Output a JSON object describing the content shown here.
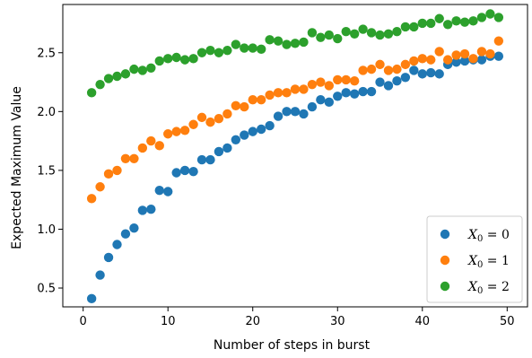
{
  "chart_data": {
    "type": "scatter",
    "title": "",
    "xlabel": "Number of steps in burst",
    "ylabel": "Expected Maximum Value",
    "xlim": [
      -2.4,
      52.4
    ],
    "ylim": [
      0.34,
      2.91
    ],
    "xticks": [
      0,
      10,
      20,
      30,
      40,
      50
    ],
    "yticks": [
      0.5,
      1.0,
      1.5,
      2.0,
      2.5
    ],
    "xtick_labels": [
      "0",
      "10",
      "20",
      "30",
      "40",
      "50"
    ],
    "ytick_labels": [
      "0.5",
      "1.0",
      "1.5",
      "2.0",
      "2.5"
    ],
    "grid": false,
    "legend_position": "lower-right",
    "x": [
      1,
      2,
      3,
      4,
      5,
      6,
      7,
      8,
      9,
      10,
      11,
      12,
      13,
      14,
      15,
      16,
      17,
      18,
      19,
      20,
      21,
      22,
      23,
      24,
      25,
      26,
      27,
      28,
      29,
      30,
      31,
      32,
      33,
      34,
      35,
      36,
      37,
      38,
      39,
      40,
      41,
      42,
      43,
      44,
      45,
      46,
      47,
      48,
      49
    ],
    "series": [
      {
        "name": "X0 = 0",
        "legend_main": "X",
        "legend_sub": "0",
        "legend_rest": " = 0",
        "color": "#1f77b4",
        "values": [
          0.41,
          0.61,
          0.76,
          0.87,
          0.96,
          1.01,
          1.16,
          1.17,
          1.33,
          1.32,
          1.48,
          1.5,
          1.49,
          1.59,
          1.59,
          1.66,
          1.69,
          1.76,
          1.8,
          1.83,
          1.85,
          1.88,
          1.96,
          2.0,
          2.0,
          1.98,
          2.04,
          2.1,
          2.08,
          2.13,
          2.16,
          2.15,
          2.17,
          2.17,
          2.25,
          2.22,
          2.26,
          2.29,
          2.35,
          2.32,
          2.33,
          2.32,
          2.4,
          2.42,
          2.43,
          2.44,
          2.44,
          2.47,
          2.47
        ]
      },
      {
        "name": "X0 = 1",
        "legend_main": "X",
        "legend_sub": "0",
        "legend_rest": " = 1",
        "color": "#ff7f0e",
        "values": [
          1.26,
          1.36,
          1.47,
          1.5,
          1.6,
          1.6,
          1.69,
          1.75,
          1.71,
          1.81,
          1.83,
          1.84,
          1.89,
          1.95,
          1.91,
          1.94,
          1.98,
          2.05,
          2.04,
          2.1,
          2.1,
          2.14,
          2.16,
          2.16,
          2.19,
          2.19,
          2.23,
          2.25,
          2.22,
          2.27,
          2.27,
          2.26,
          2.35,
          2.36,
          2.4,
          2.35,
          2.36,
          2.4,
          2.43,
          2.45,
          2.44,
          2.51,
          2.44,
          2.48,
          2.49,
          2.45,
          2.51,
          2.49,
          2.6
        ]
      },
      {
        "name": "X0 = 2",
        "legend_main": "X",
        "legend_sub": "0",
        "legend_rest": " = 2",
        "color": "#2ca02c",
        "values": [
          2.16,
          2.23,
          2.28,
          2.3,
          2.32,
          2.36,
          2.35,
          2.37,
          2.43,
          2.45,
          2.46,
          2.44,
          2.45,
          2.5,
          2.52,
          2.5,
          2.52,
          2.57,
          2.54,
          2.54,
          2.53,
          2.61,
          2.6,
          2.57,
          2.58,
          2.59,
          2.67,
          2.63,
          2.65,
          2.62,
          2.68,
          2.66,
          2.7,
          2.67,
          2.65,
          2.66,
          2.68,
          2.72,
          2.72,
          2.75,
          2.75,
          2.79,
          2.74,
          2.77,
          2.76,
          2.77,
          2.8,
          2.83,
          2.8
        ]
      }
    ]
  }
}
